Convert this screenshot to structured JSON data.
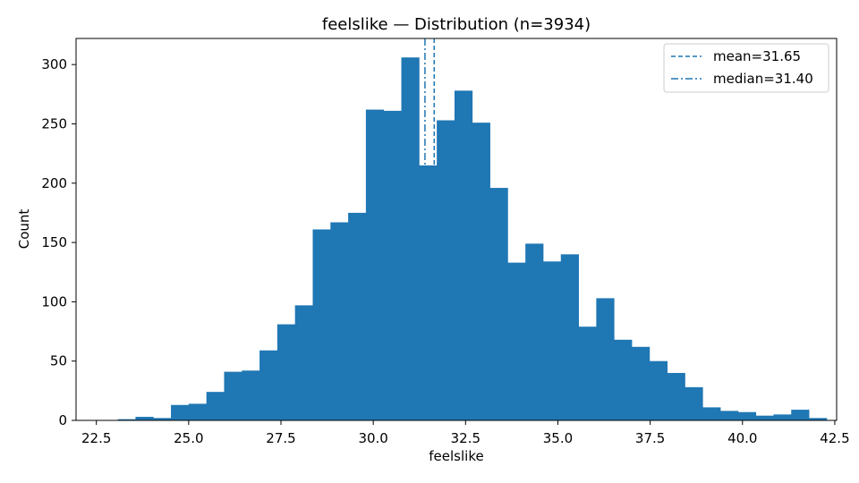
{
  "chart_data": {
    "type": "bar",
    "title": "feelslike — Distribution (n=3934)",
    "xlabel": "feelslike",
    "ylabel": "Count",
    "xlim": [
      21.95,
      42.55
    ],
    "ylim": [
      0,
      322
    ],
    "xticks": [
      22.5,
      25.0,
      27.5,
      30.0,
      32.5,
      35.0,
      37.5,
      40.0,
      42.5
    ],
    "xtick_labels": [
      "22.5",
      "25.0",
      "27.5",
      "30.0",
      32.5,
      "35.0",
      "37.5",
      "40.0",
      "42.5"
    ],
    "yticks": [
      0,
      50,
      100,
      150,
      200,
      250,
      300
    ],
    "bins": {
      "start": 22.6,
      "width": 0.48,
      "counts": [
        0,
        1,
        3,
        2,
        13,
        14,
        24,
        41,
        42,
        59,
        81,
        97,
        161,
        167,
        175,
        262,
        261,
        306,
        215,
        253,
        278,
        251,
        196,
        133,
        149,
        134,
        140,
        79,
        103,
        68,
        62,
        50,
        40,
        28,
        11,
        8,
        7,
        4,
        5,
        9,
        2
      ]
    },
    "bar_color": "#1f77b4",
    "mean": 31.65,
    "median": 31.4,
    "legend": {
      "position": "top-right",
      "entries": [
        {
          "label": "mean=31.65",
          "style": "dashed"
        },
        {
          "label": "median=31.40",
          "style": "dashdot"
        }
      ]
    }
  }
}
